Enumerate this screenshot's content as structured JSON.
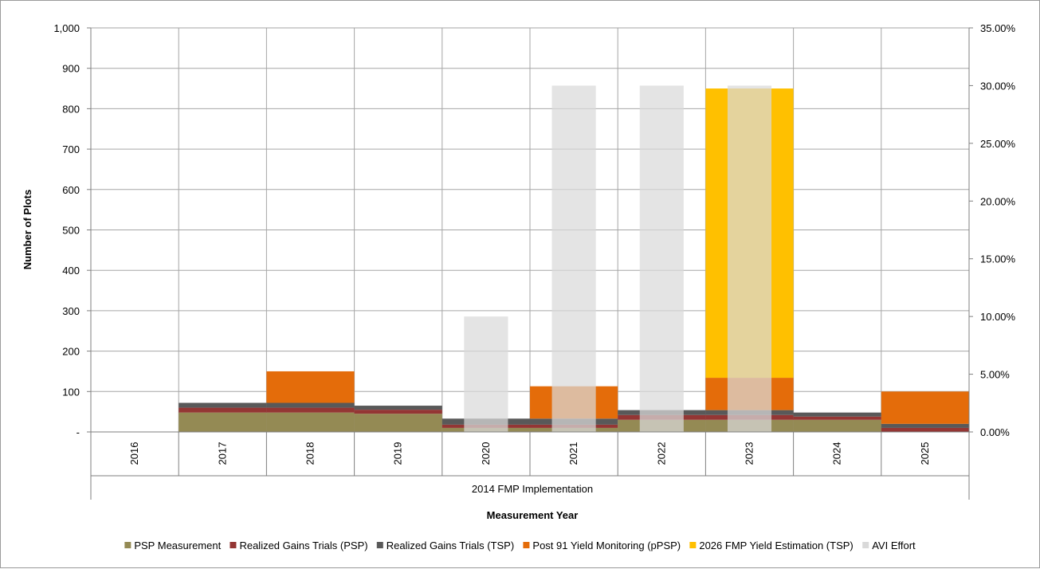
{
  "chart_data": {
    "type": "bar",
    "stacked": true,
    "categories": [
      "2016",
      "2017",
      "2018",
      "2019",
      "2020",
      "2021",
      "2022",
      "2023",
      "2024",
      "2025"
    ],
    "group_label": "2014 FMP Implementation",
    "xlabel": "Measurement Year",
    "ylabel": "Number of Plots",
    "ylim": [
      0,
      1000
    ],
    "yticks": [
      0,
      100,
      200,
      300,
      400,
      500,
      600,
      700,
      800,
      900,
      1000
    ],
    "ytick_labels": [
      "-",
      "100",
      "200",
      "300",
      "400",
      "500",
      "600",
      "700",
      "800",
      "900",
      "1,000"
    ],
    "y2lim": [
      0,
      0.35
    ],
    "y2ticks": [
      0,
      0.05,
      0.1,
      0.15,
      0.2,
      0.25,
      0.3,
      0.35
    ],
    "y2tick_labels": [
      "0.00%",
      "5.00%",
      "10.00%",
      "15.00%",
      "20.00%",
      "25.00%",
      "30.00%",
      "35.00%"
    ],
    "grid": true,
    "legend_position": "bottom",
    "series": [
      {
        "name": "PSP Measurement",
        "color": "#948a54",
        "axis": "primary",
        "values": [
          0,
          48,
          48,
          45,
          10,
          10,
          30,
          30,
          30,
          0
        ]
      },
      {
        "name": "Realized Gains Trials (PSP)",
        "color": "#943634",
        "axis": "primary",
        "values": [
          0,
          12,
          12,
          10,
          8,
          8,
          12,
          12,
          8,
          10
        ]
      },
      {
        "name": "Realized Gains Trials (TSP)",
        "color": "#595959",
        "axis": "primary",
        "values": [
          0,
          12,
          12,
          10,
          15,
          15,
          12,
          12,
          10,
          10
        ]
      },
      {
        "name": "Post 91 Yield Monitoring (pPSP)",
        "color": "#e46c0a",
        "axis": "primary",
        "values": [
          0,
          0,
          78,
          0,
          0,
          80,
          0,
          80,
          0,
          80
        ]
      },
      {
        "name": "2026 FMP Yield Estimation (TSP)",
        "color": "#ffc000",
        "axis": "primary",
        "values": [
          0,
          0,
          0,
          0,
          0,
          0,
          0,
          716,
          0,
          0
        ]
      },
      {
        "name": "AVI Effort",
        "color": "#d9d9d9",
        "axis": "secondary",
        "overlay": true,
        "values": [
          0,
          0,
          0,
          0,
          0.1,
          0.3,
          0.3,
          0.3,
          0,
          0
        ]
      }
    ]
  }
}
